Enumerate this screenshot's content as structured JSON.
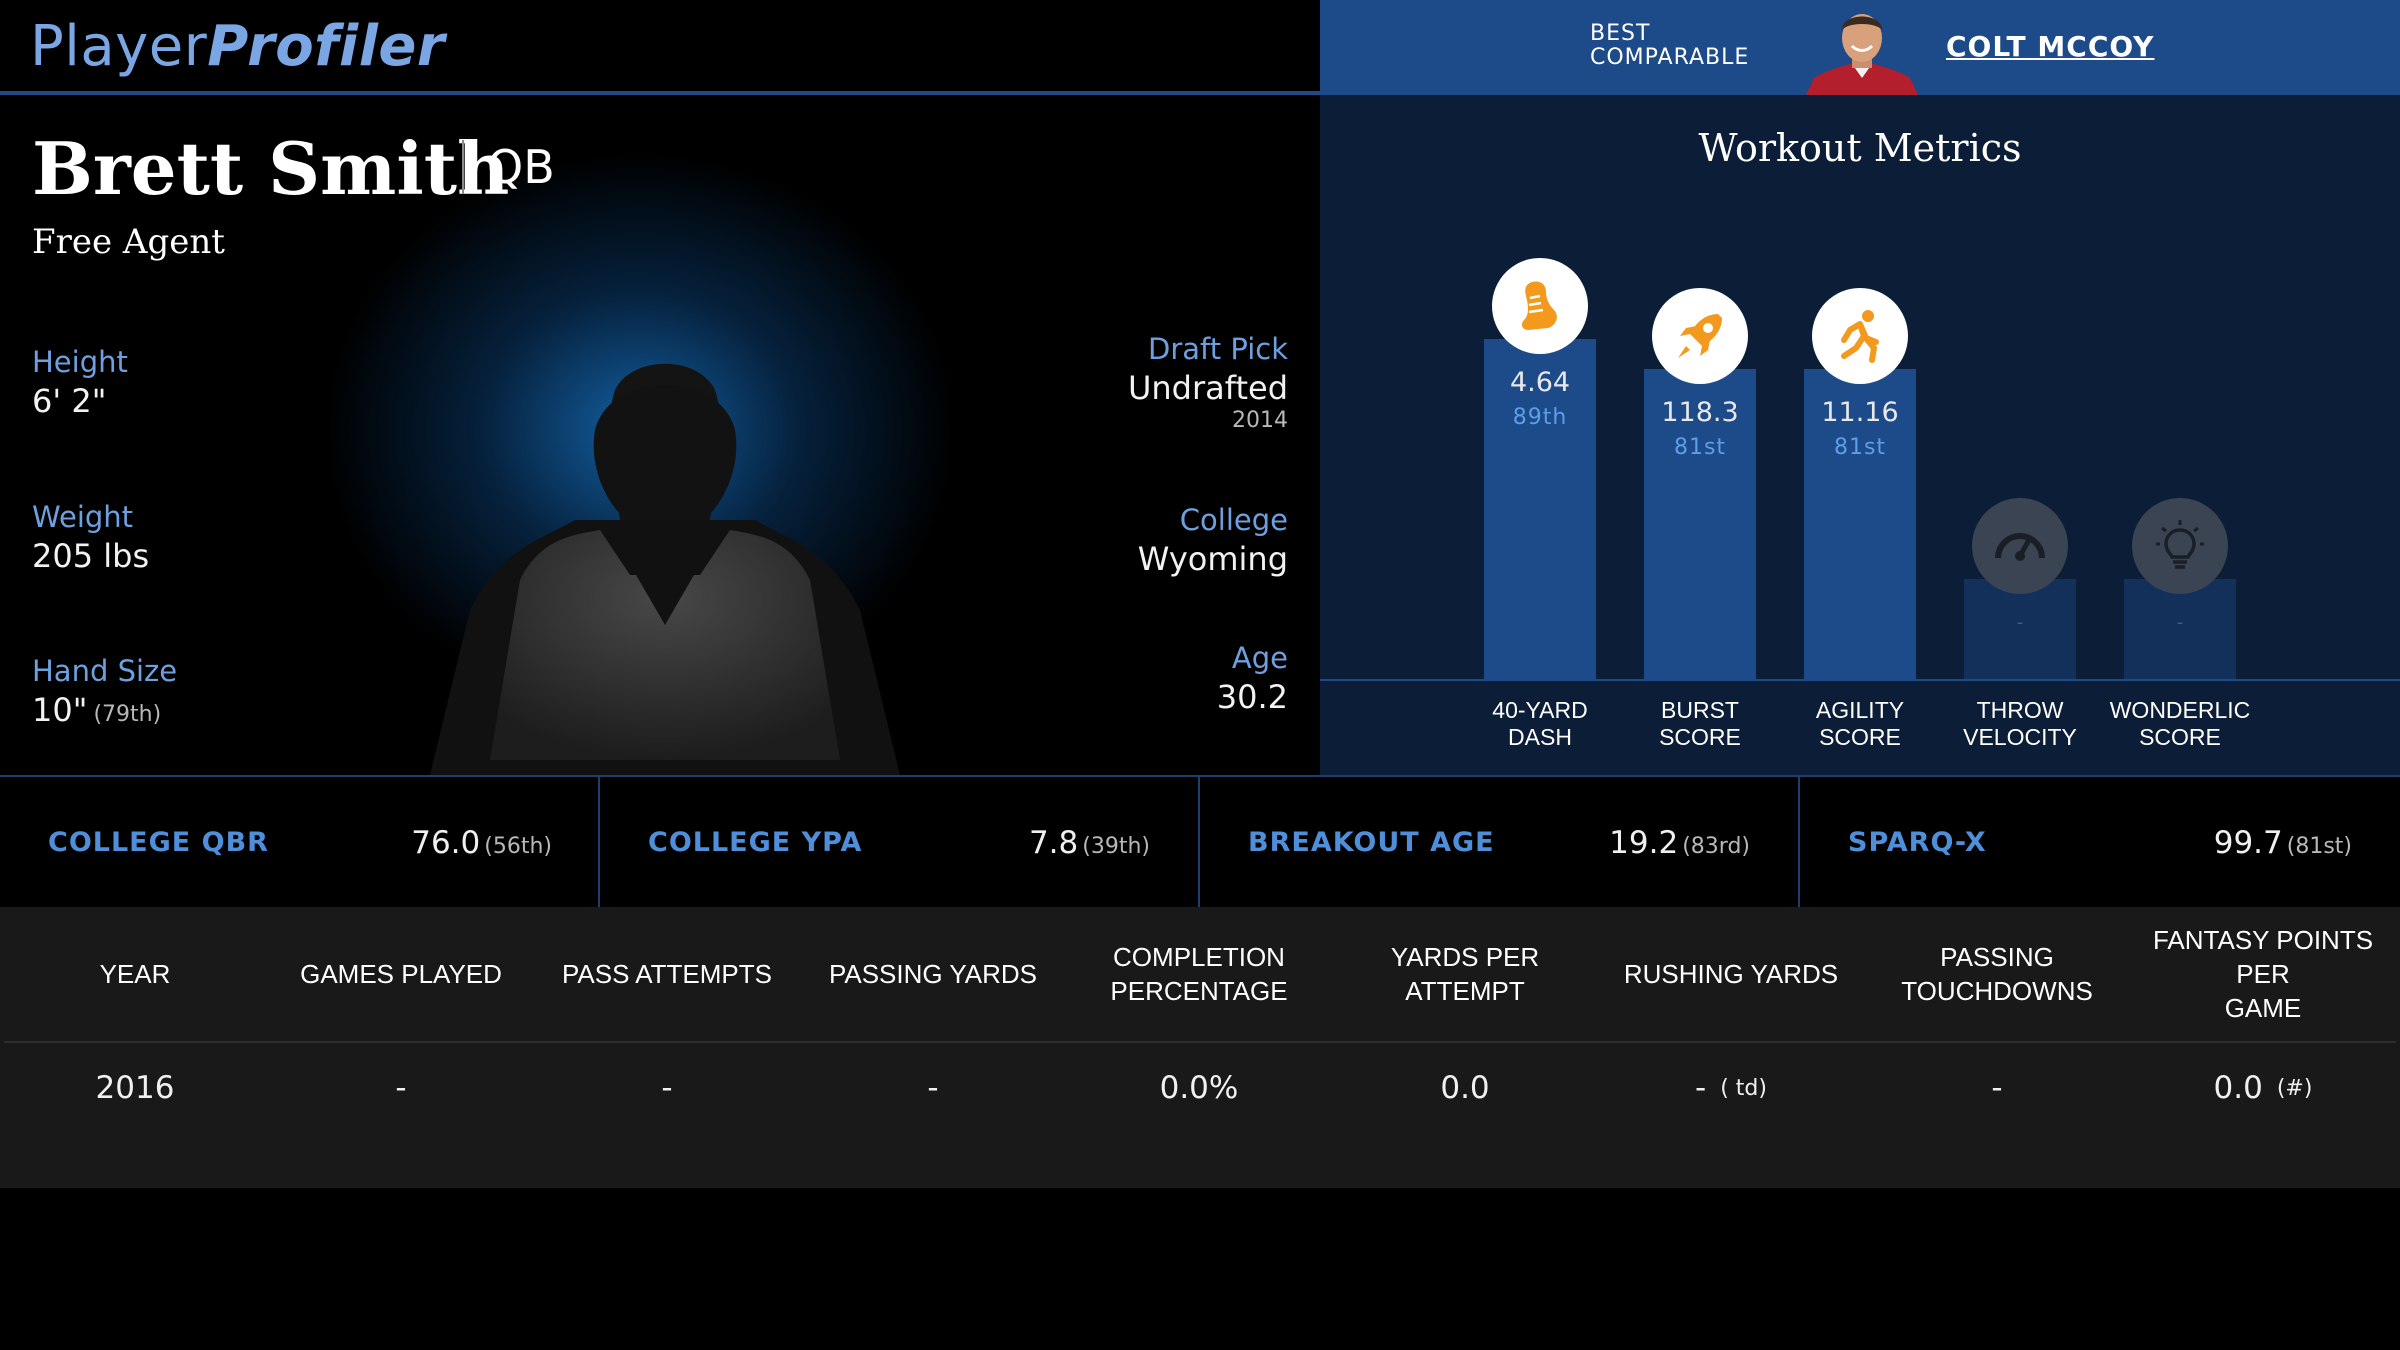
{
  "logo": {
    "part1": "Player",
    "part2": "Profiler"
  },
  "player": {
    "name": "Brett Smith",
    "position": "QB",
    "team": "Free Agent",
    "height": {
      "label": "Height",
      "value": "6' 2\""
    },
    "weight": {
      "label": "Weight",
      "value": "205 lbs"
    },
    "hand_size": {
      "label": "Hand Size",
      "value": "10\"",
      "percentile": "(79th)"
    },
    "draft_pick": {
      "label": "Draft Pick",
      "value": "Undrafted",
      "year": "2014"
    },
    "college": {
      "label": "College",
      "value": "Wyoming"
    },
    "age": {
      "label": "Age",
      "value": "30.2"
    }
  },
  "comparable": {
    "label_line1": "BEST",
    "label_line2": "COMPARABLE",
    "name": "COLT MCCOY",
    "avatar_icon": "player-headshot-icon"
  },
  "workout": {
    "title": "Workout Metrics",
    "metrics": [
      {
        "label_line1": "40-YARD",
        "label_line2": "DASH",
        "value": "4.64",
        "percentile": "89th",
        "percentile_value": 89,
        "icon": "shoe-icon"
      },
      {
        "label_line1": "BURST",
        "label_line2": "SCORE",
        "value": "118.3",
        "percentile": "81st",
        "percentile_value": 81,
        "icon": "rocket-icon"
      },
      {
        "label_line1": "AGILITY",
        "label_line2": "SCORE",
        "value": "11.16",
        "percentile": "81st",
        "percentile_value": 81,
        "icon": "runner-icon"
      },
      {
        "label_line1": "THROW",
        "label_line2": "VELOCITY",
        "value": "-",
        "percentile": "",
        "icon": "speedometer-icon"
      },
      {
        "label_line1": "WONDERLIC",
        "label_line2": "SCORE",
        "value": "-",
        "percentile": "",
        "icon": "lightbulb-icon"
      }
    ]
  },
  "stats": [
    {
      "label": "COLLEGE QBR",
      "value": "76.0",
      "percentile": "(56th)"
    },
    {
      "label": "COLLEGE YPA",
      "value": "7.8",
      "percentile": "(39th)"
    },
    {
      "label": "BREAKOUT AGE",
      "value": "19.2",
      "percentile": "(83rd)"
    },
    {
      "label": "SPARQ-X",
      "value": "99.7",
      "percentile": "(81st)"
    }
  ],
  "table": {
    "headers": [
      [
        "YEAR"
      ],
      [
        "GAMES PLAYED"
      ],
      [
        "PASS ATTEMPTS"
      ],
      [
        "PASSING YARDS"
      ],
      [
        "COMPLETION",
        "PERCENTAGE"
      ],
      [
        "YARDS PER ATTEMPT"
      ],
      [
        "RUSHING YARDS"
      ],
      [
        "PASSING TOUCHDOWNS"
      ],
      [
        "FANTASY POINTS PER",
        "GAME"
      ]
    ],
    "rows": [
      {
        "year": "2016",
        "games_played": "-",
        "pass_attempts": "-",
        "passing_yards": "-",
        "completion_percentage": "0.0%",
        "yards_per_attempt": "0.0",
        "rushing_yards": "-",
        "rushing_yards_note": "( td)",
        "passing_touchdowns": "-",
        "fantasy_points_per_game": "0.0",
        "fantasy_points_note": "(#)"
      }
    ]
  },
  "colors": {
    "accent": "#6ea0e0",
    "header_blue": "#1d4a89",
    "panel_navy": "#0c1d38",
    "icon_orange": "#f39a1e"
  }
}
